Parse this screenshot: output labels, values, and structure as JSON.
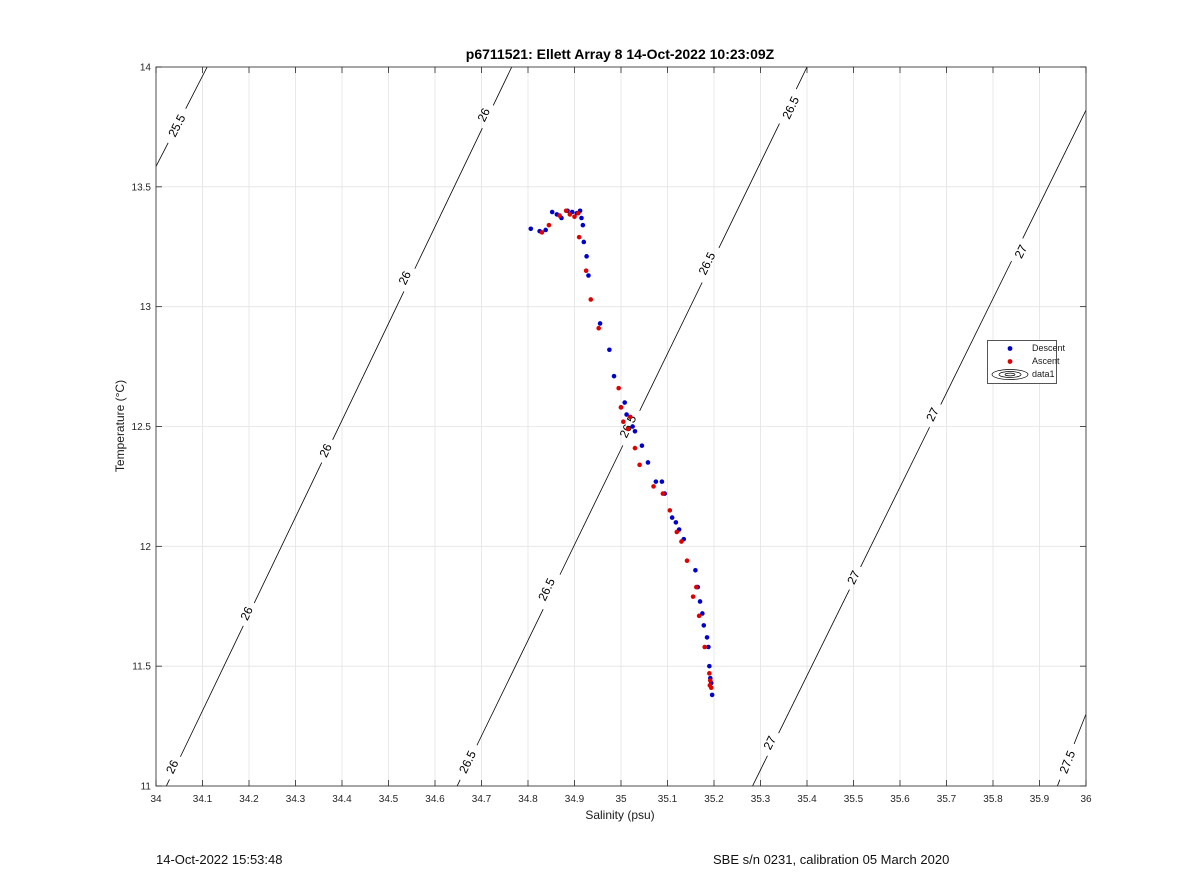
{
  "chart_data": {
    "type": "scatter",
    "title": "p6711521: Ellett Array 8 14-Oct-2022 10:23:09Z",
    "xlabel": "Salinity (psu)",
    "ylabel": "Temperature (°C)",
    "xlim": [
      34,
      36
    ],
    "ylim": [
      11,
      14
    ],
    "x_ticks": [
      "34",
      "34.1",
      "34.2",
      "34.3",
      "34.4",
      "34.5",
      "34.6",
      "34.7",
      "34.8",
      "34.9",
      "35",
      "35.1",
      "35.2",
      "35.3",
      "35.4",
      "35.5",
      "35.6",
      "35.7",
      "35.8",
      "35.9",
      "36"
    ],
    "y_ticks": [
      "11",
      "11.5",
      "12",
      "12.5",
      "13",
      "13.5",
      "14"
    ],
    "grid": true,
    "legend_position": "right",
    "series": [
      {
        "name": "Descent",
        "color": "#0000cc",
        "points": [
          [
            34.806,
            13.325
          ],
          [
            34.825,
            13.315
          ],
          [
            34.838,
            13.32
          ],
          [
            34.852,
            13.395
          ],
          [
            34.862,
            13.385
          ],
          [
            34.872,
            13.37
          ],
          [
            34.885,
            13.4
          ],
          [
            34.895,
            13.395
          ],
          [
            34.905,
            13.39
          ],
          [
            34.912,
            13.4
          ],
          [
            34.915,
            13.37
          ],
          [
            34.918,
            13.34
          ],
          [
            34.92,
            13.27
          ],
          [
            34.926,
            13.21
          ],
          [
            34.93,
            13.13
          ],
          [
            34.955,
            12.93
          ],
          [
            34.975,
            12.82
          ],
          [
            34.985,
            12.71
          ],
          [
            35.0,
            12.58
          ],
          [
            35.008,
            12.6
          ],
          [
            35.012,
            12.55
          ],
          [
            35.025,
            12.5
          ],
          [
            35.03,
            12.48
          ],
          [
            35.045,
            12.42
          ],
          [
            35.058,
            12.35
          ],
          [
            35.075,
            12.27
          ],
          [
            35.088,
            12.27
          ],
          [
            35.094,
            12.22
          ],
          [
            35.11,
            12.12
          ],
          [
            35.118,
            12.1
          ],
          [
            35.125,
            12.07
          ],
          [
            35.135,
            12.03
          ],
          [
            35.16,
            11.9
          ],
          [
            35.165,
            11.83
          ],
          [
            35.17,
            11.77
          ],
          [
            35.175,
            11.72
          ],
          [
            35.178,
            11.67
          ],
          [
            35.185,
            11.62
          ],
          [
            35.188,
            11.58
          ],
          [
            35.19,
            11.5
          ],
          [
            35.192,
            11.45
          ],
          [
            35.194,
            11.43
          ],
          [
            35.196,
            11.38
          ]
        ]
      },
      {
        "name": "Ascent",
        "color": "#e00000",
        "points": [
          [
            34.83,
            13.31
          ],
          [
            34.845,
            13.34
          ],
          [
            34.868,
            13.38
          ],
          [
            34.882,
            13.4
          ],
          [
            34.89,
            13.385
          ],
          [
            34.9,
            13.375
          ],
          [
            34.908,
            13.39
          ],
          [
            34.91,
            13.29
          ],
          [
            34.925,
            13.15
          ],
          [
            34.935,
            13.03
          ],
          [
            34.952,
            12.91
          ],
          [
            34.995,
            12.66
          ],
          [
            35.0,
            12.58
          ],
          [
            35.005,
            12.52
          ],
          [
            35.015,
            12.49
          ],
          [
            35.02,
            12.54
          ],
          [
            35.03,
            12.41
          ],
          [
            35.04,
            12.34
          ],
          [
            35.07,
            12.25
          ],
          [
            35.09,
            12.22
          ],
          [
            35.105,
            12.15
          ],
          [
            35.12,
            12.06
          ],
          [
            35.13,
            12.02
          ],
          [
            35.142,
            11.94
          ],
          [
            35.155,
            11.79
          ],
          [
            35.168,
            11.71
          ],
          [
            35.18,
            11.58
          ],
          [
            35.19,
            11.47
          ],
          [
            35.192,
            11.44
          ],
          [
            35.194,
            11.41
          ],
          [
            35.191,
            11.42
          ],
          [
            35.162,
            11.83
          ]
        ]
      }
    ],
    "legend_entries": [
      "Descent",
      "Ascent",
      "data1"
    ],
    "contours": {
      "series_name": "data1",
      "color": "#000000",
      "lines": [
        {
          "level": "25.5",
          "start": [
            34.0,
            13.585
          ],
          "end": [
            34.11,
            14.0
          ],
          "labels": [
            [
              34.045,
              13.755
            ]
          ]
        },
        {
          "level": "26",
          "start": [
            34.0,
            10.91
          ],
          "end": [
            34.765,
            14.0
          ],
          "labels": [
            [
              34.035,
              11.08
            ],
            [
              34.195,
              11.72
            ],
            [
              34.365,
              12.4
            ],
            [
              34.535,
              13.12
            ],
            [
              34.705,
              13.8
            ]
          ]
        },
        {
          "level": "26.5",
          "start": [
            34.625,
            10.91
          ],
          "end": [
            35.4,
            14.0
          ],
          "labels": [
            [
              34.67,
              11.1
            ],
            [
              34.84,
              11.82
            ],
            [
              35.015,
              12.5
            ],
            [
              35.185,
              13.18
            ],
            [
              35.365,
              13.83
            ]
          ]
        },
        {
          "level": "27",
          "start": [
            35.26,
            10.91
          ],
          "end": [
            36.0,
            13.82
          ],
          "labels": [
            [
              35.32,
              11.18
            ],
            [
              35.5,
              11.87
            ],
            [
              35.67,
              12.55
            ],
            [
              35.86,
              13.23
            ]
          ]
        },
        {
          "level": "27.5",
          "start": [
            35.92,
            10.91
          ],
          "end": [
            36.0,
            11.3
          ],
          "labels": [
            [
              35.96,
              11.1
            ]
          ]
        }
      ]
    }
  },
  "footer": {
    "left": "14-Oct-2022 15:53:48",
    "right": "SBE s/n 0231, calibration 05 March 2020"
  }
}
